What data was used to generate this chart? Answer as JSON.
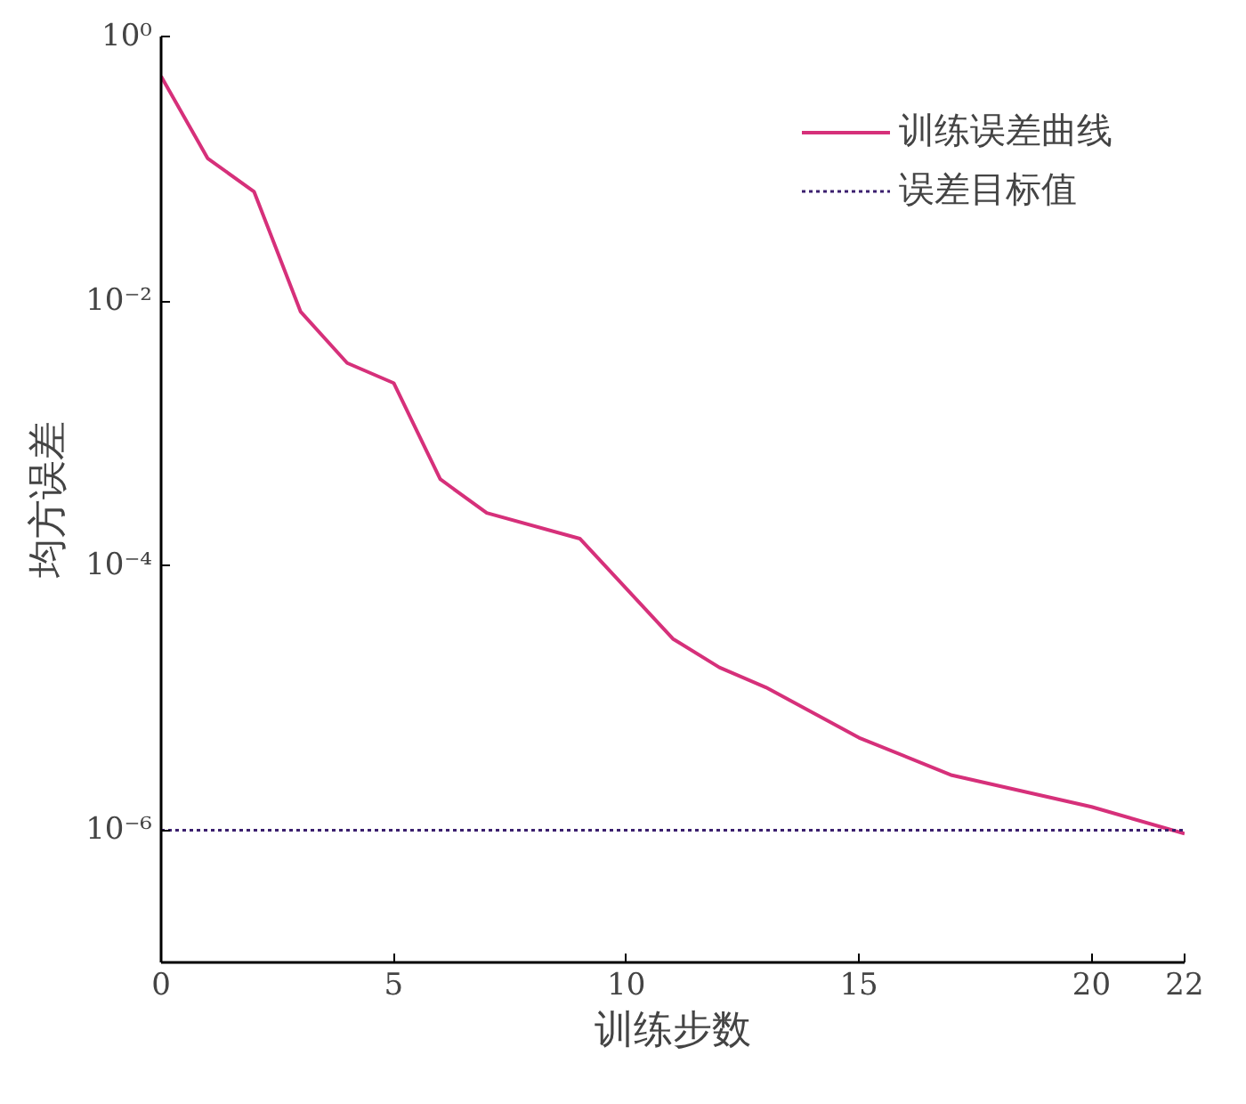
{
  "chart_data": {
    "type": "line",
    "xlabel": "训练步数",
    "ylabel": "均方误差",
    "x": [
      0,
      1,
      2,
      3,
      4,
      5,
      6,
      7,
      9,
      11,
      12,
      13,
      15,
      17,
      20,
      22
    ],
    "series": [
      {
        "name": "训练误差曲线",
        "color": "#d6307a",
        "values": [
          0.5,
          0.12,
          0.067,
          0.0083,
          0.0034,
          0.0024,
          0.00045,
          0.00025,
          0.00016,
          2.8e-05,
          1.7e-05,
          1.2e-05,
          5e-06,
          2.6e-06,
          1.5e-06,
          9.4e-07
        ]
      }
    ],
    "ref_lines": [
      {
        "axis": "y",
        "value": 1e-06,
        "label": "误差目标值",
        "color": "#3b1f6e",
        "line_style": "dotted"
      }
    ],
    "xlim": [
      0,
      22
    ],
    "xticks": [
      0,
      5,
      10,
      15,
      20,
      22
    ],
    "ylim": [
      1e-07,
      1
    ],
    "yticks": [
      {
        "value": 1,
        "label": "10⁰"
      },
      {
        "value": 0.01,
        "label": "10⁻²"
      },
      {
        "value": 0.0001,
        "label": "10⁻⁴"
      },
      {
        "value": 1e-06,
        "label": "10⁻⁶"
      }
    ],
    "log": "y",
    "grid": false,
    "legend": "top right",
    "marker": "none",
    "line_style": "solid"
  }
}
